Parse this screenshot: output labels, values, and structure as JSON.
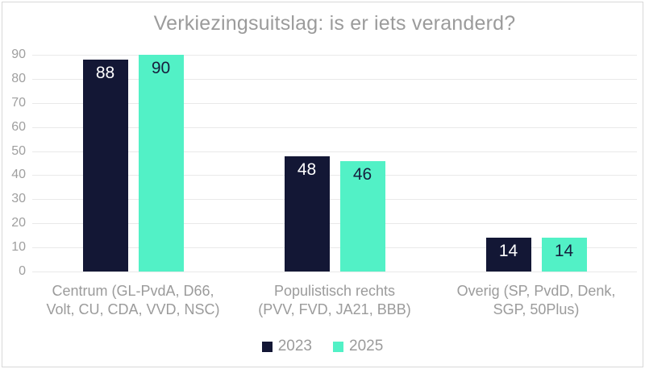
{
  "title": "Verkiezingsuitslag: is er iets veranderd?",
  "colors": {
    "series_2023": "#131735",
    "series_2025": "#52f1c6",
    "grid": "#e9e9e9",
    "axis_text": "#9f9f9f",
    "label_text": "#9b9b9b",
    "frame_border": "#d8d8d8"
  },
  "chart_data": {
    "type": "bar",
    "title": "Verkiezingsuitslag: is er iets veranderd?",
    "categories": [
      {
        "line1": "Centrum (GL-PvdA, D66,",
        "line2": "Volt, CU, CDA, VVD, NSC)"
      },
      {
        "line1": "Populistisch rechts",
        "line2": "(PVV, FVD, JA21, BBB)"
      },
      {
        "line1": "Overig (SP, PvdD, Denk,",
        "line2": "SGP, 50Plus)"
      }
    ],
    "series": [
      {
        "name": "2023",
        "color": "#131735",
        "label_color": "#ffffff",
        "values": [
          88,
          48,
          14
        ]
      },
      {
        "name": "2025",
        "color": "#52f1c6",
        "label_color": "#16203e",
        "values": [
          90,
          46,
          14
        ]
      }
    ],
    "xlabel": "",
    "ylabel": "",
    "y_axis": {
      "min": 0,
      "max": 90,
      "tick_step": 10,
      "ticks": [
        0,
        10,
        20,
        30,
        40,
        50,
        60,
        70,
        80,
        90
      ]
    },
    "ylim": [
      0,
      90
    ],
    "grid": "horizontal",
    "legend_position": "bottom"
  }
}
